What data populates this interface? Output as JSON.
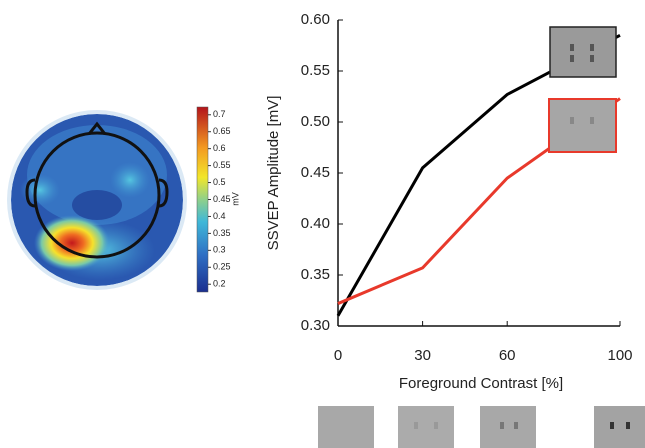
{
  "chart_data": [
    {
      "type": "topomap",
      "colorbar_label": "mV",
      "ylim": [
        0.18,
        0.72
      ],
      "yticks": [
        0.2,
        0.25,
        0.3,
        0.35,
        0.4,
        0.45,
        0.5,
        0.55,
        0.6,
        0.65,
        0.7
      ]
    },
    {
      "type": "line",
      "x": [
        0,
        30,
        60,
        100
      ],
      "series": [
        {
          "color": "#000000",
          "values": [
            0.31,
            0.455,
            0.527,
            0.585
          ]
        },
        {
          "color": "#e8392b",
          "values": [
            0.322,
            0.357,
            0.445,
            0.523
          ]
        }
      ],
      "xlabel": "Foreground Contrast [%]",
      "ylabel": "SSVEP Amplitude [mV]",
      "xlim": [
        0,
        100
      ],
      "xticks": [
        0,
        30,
        60,
        100
      ],
      "ylim": [
        0.3,
        0.6
      ],
      "yticks": [
        {
          "value": 0.3,
          "label": "0.30"
        },
        0.35,
        {
          "value": 0.4,
          "label": "0.40"
        },
        0.45,
        {
          "value": 0.5,
          "label": "0.50"
        },
        0.55,
        {
          "value": 0.6,
          "label": "0.60"
        }
      ]
    }
  ]
}
